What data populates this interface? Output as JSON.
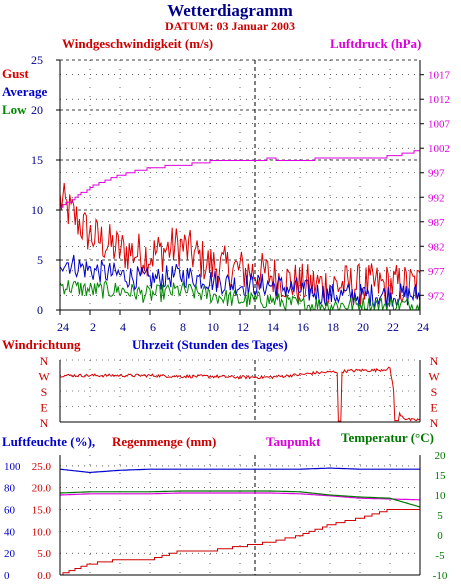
{
  "header": {
    "title": "Wetterdiagramm",
    "date": "DATUM: 03 Januar 2003"
  },
  "colors": {
    "gust": "#dd0000",
    "average": "#0000cc",
    "low": "#008800",
    "pressure": "#dd00dd",
    "temperature": "#007700",
    "humidity": "#0000cc",
    "rain": "#cc0000",
    "dewpoint": "#dd00dd",
    "axis": "#000000",
    "grid": "#000000"
  },
  "panel_wind": {
    "title_left": "Windgeschwindigkeit (m/s)",
    "title_right": "Luftdruck (hPa)",
    "legend": [
      "Gust",
      "Average",
      "Low"
    ],
    "y_left_ticks": [
      "25",
      "20",
      "15",
      "10",
      "5",
      "0"
    ],
    "y_right_ticks": [
      "1017",
      "1012",
      "1007",
      "1002",
      "997",
      "992",
      "987",
      "982",
      "977",
      "972"
    ],
    "x_ticks": [
      "24",
      "2",
      "4",
      "6",
      "8",
      "10",
      "12",
      "14",
      "16",
      "18",
      "20",
      "22",
      "24"
    ]
  },
  "panel_dir": {
    "title_left": "Windrichtung",
    "title_center": "Uhrzeit (Stunden des Tages)",
    "y_ticks": [
      "N",
      "W",
      "S",
      "E",
      "N"
    ]
  },
  "panel_hum": {
    "title_humidity": "Luftfeuchte (%),",
    "title_rain": "Regenmenge (mm)",
    "title_dewpoint": "Taupunkt",
    "title_temperature": "Temperatur (°C)",
    "y_hum_ticks": [
      "100",
      "80",
      "60",
      "40",
      "20",
      "0"
    ],
    "y_rain_ticks": [
      "25.0",
      "20.0",
      "15.0",
      "10.0",
      "5.0",
      "0.0"
    ],
    "y_temp_ticks": [
      "20",
      "15",
      "10",
      "5",
      "0",
      "-5",
      "-10"
    ]
  },
  "chart_data": [
    {
      "type": "line",
      "x": [
        0,
        2,
        4,
        6,
        8,
        10,
        12,
        14,
        16,
        18,
        20,
        22,
        24
      ],
      "xlim": [
        0,
        24
      ],
      "series": [
        {
          "name": "Gust",
          "axis": "left",
          "values": [
            11,
            7.5,
            6,
            5.5,
            6.5,
            4.5,
            4,
            3.5,
            2.5,
            2.5,
            2.5,
            2.5,
            2.5
          ]
        },
        {
          "name": "Average",
          "axis": "left",
          "values": [
            5,
            4,
            3.5,
            3,
            3.5,
            3,
            2.5,
            2.5,
            2,
            1.5,
            1.5,
            1.5,
            1.5
          ]
        },
        {
          "name": "Low",
          "axis": "left",
          "values": [
            2.5,
            2,
            2,
            1.5,
            2,
            1.5,
            1,
            1,
            0.5,
            0.5,
            0.5,
            0.5,
            0.5
          ]
        },
        {
          "name": "Luftdruck",
          "axis": "right",
          "values": [
            990,
            994,
            996.5,
            998,
            998.5,
            999.3,
            999.5,
            999.8,
            999.5,
            1000,
            1000,
            1000.3,
            1001.5
          ]
        }
      ],
      "ylim_left": [
        0,
        25
      ],
      "ylim_right": [
        969,
        1020
      ]
    },
    {
      "type": "line",
      "name": "Windrichtung",
      "categories_y": [
        "N",
        "W",
        "S",
        "E",
        "N"
      ],
      "x": [
        0,
        2,
        4,
        6,
        8,
        10,
        12,
        14,
        16,
        17,
        18,
        19,
        20,
        21,
        22,
        22.5,
        23,
        23.5,
        24
      ],
      "values": [
        270,
        270,
        270,
        270,
        265,
        265,
        260,
        260,
        275,
        285,
        290,
        295,
        300,
        300,
        310,
        60,
        20,
        10,
        15
      ],
      "ylim": [
        0,
        360
      ]
    },
    {
      "type": "line",
      "x": [
        0,
        2,
        4,
        6,
        8,
        10,
        12,
        14,
        16,
        18,
        20,
        22,
        24
      ],
      "xlim": [
        0,
        24
      ],
      "series": [
        {
          "name": "Luftfeuchte",
          "axis": "hum",
          "values": [
            97,
            94,
            96,
            97,
            97,
            97,
            97,
            97,
            97,
            98,
            97,
            97,
            97
          ]
        },
        {
          "name": "Regenmenge",
          "axis": "rain",
          "values": [
            0,
            2.5,
            3.5,
            3.5,
            5.5,
            5.5,
            6.5,
            7.5,
            9,
            11.5,
            13,
            15,
            15
          ]
        },
        {
          "name": "Taupunkt",
          "axis": "temp",
          "values": [
            10,
            10.3,
            10.3,
            10.3,
            10.5,
            10.5,
            10.5,
            10.5,
            10.3,
            9.8,
            9.2,
            9.0,
            8.8
          ]
        },
        {
          "name": "Temperatur",
          "axis": "temp",
          "values": [
            10.5,
            10.8,
            10.8,
            10.8,
            11,
            11,
            11,
            11,
            10.8,
            10,
            9.5,
            9.2,
            7.0
          ]
        }
      ],
      "ylim_hum": [
        0,
        110
      ],
      "ylim_rain": [
        0,
        27.5
      ],
      "ylim_temp": [
        -10,
        20
      ]
    }
  ]
}
